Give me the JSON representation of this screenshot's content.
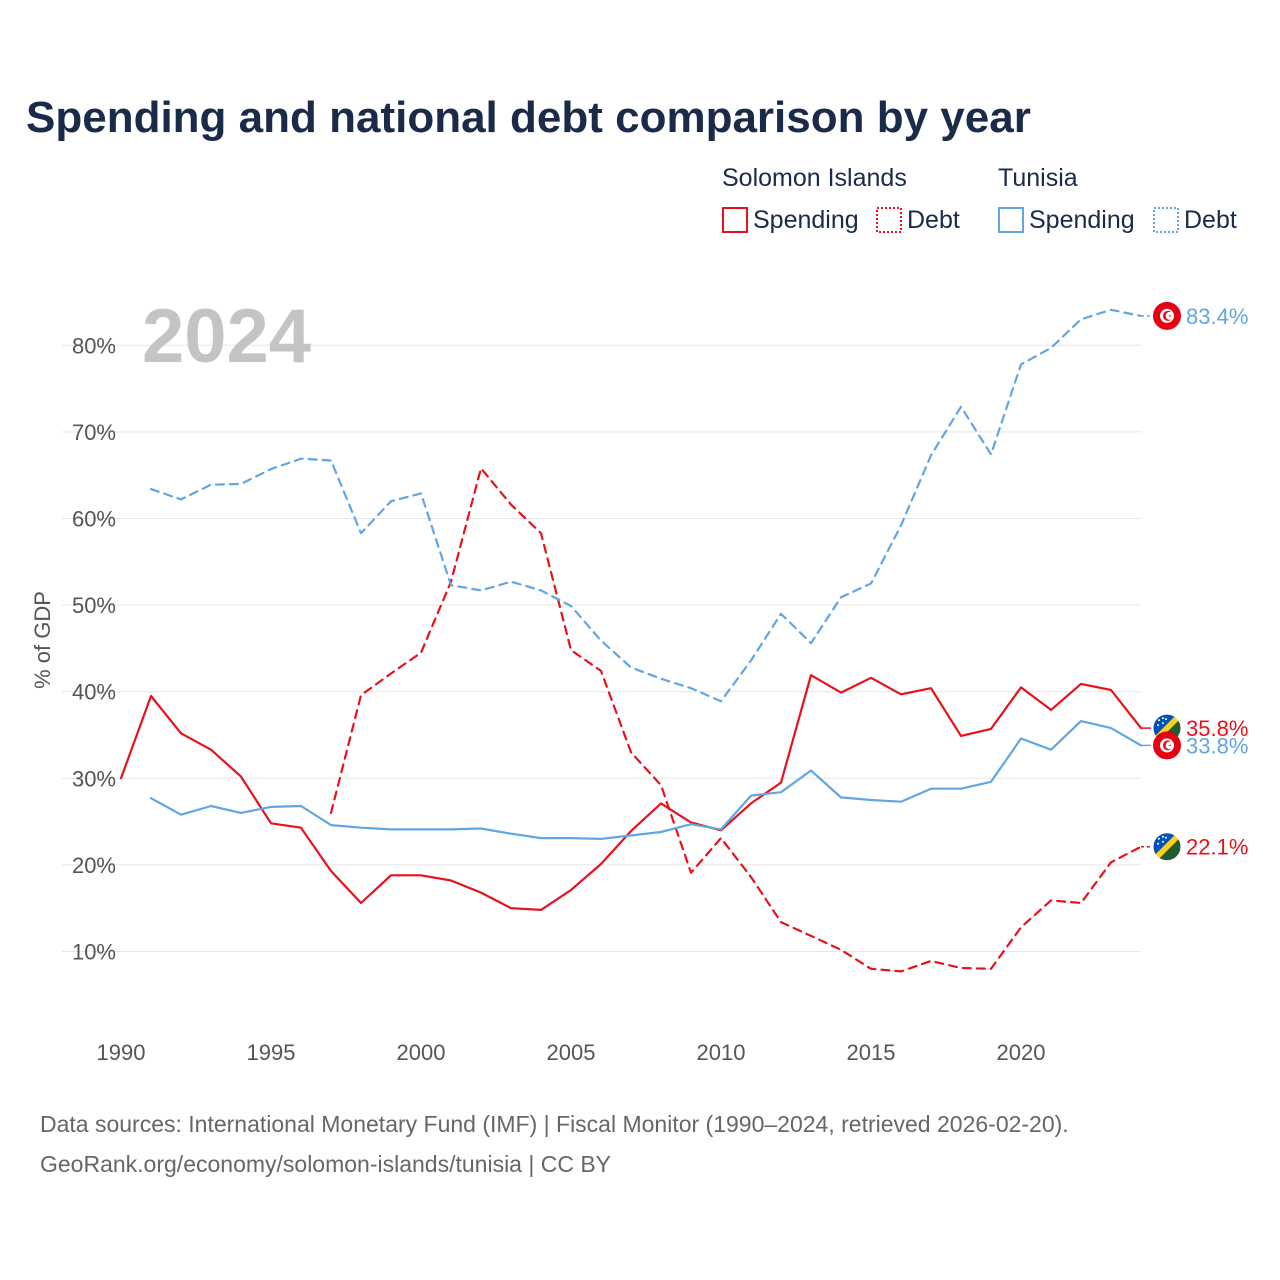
{
  "title": "Spending and national debt comparison by year",
  "year_display": "2024",
  "legend": {
    "groups": [
      {
        "country": "Solomon Islands",
        "items": [
          {
            "label": "Spending",
            "color": "#e8111b",
            "style": "solid"
          },
          {
            "label": "Debt",
            "color": "#e8111b",
            "style": "dashed"
          }
        ]
      },
      {
        "country": "Tunisia",
        "items": [
          {
            "label": "Spending",
            "color": "#62a5e3",
            "style": "solid"
          },
          {
            "label": "Debt",
            "color": "#62a5e3",
            "style": "dashed"
          }
        ]
      }
    ]
  },
  "colors": {
    "solomon": "#e8111b",
    "tunisia": "#62a5e3",
    "title": "#1a2b4a"
  },
  "source_lines": [
    "Data sources: International Monetary Fund (IMF) | Fiscal Monitor (1990–2024, retrieved 2026-02-20).",
    "GeoRank.org/economy/solomon-islands/tunisia | CC BY"
  ],
  "chart_data": {
    "type": "line",
    "ylabel": "% of GDP",
    "xlabel": "",
    "xlim": [
      1990,
      2024
    ],
    "ylim": [
      2,
      86
    ],
    "x_ticks": [
      1990,
      1995,
      2000,
      2005,
      2010,
      2015,
      2020
    ],
    "y_ticks": [
      10,
      20,
      30,
      40,
      50,
      60,
      70,
      80
    ],
    "y_tick_labels": [
      "10%",
      "20%",
      "30%",
      "40%",
      "50%",
      "60%",
      "70%",
      "80%"
    ],
    "series": [
      {
        "name": "Solomon Islands Spending",
        "country": "Solomon Islands",
        "color": "#e8111b",
        "style": "solid",
        "x": [
          1990,
          1991,
          1992,
          1993,
          1994,
          1995,
          1996,
          1997,
          1998,
          1999,
          2000,
          2001,
          2002,
          2003,
          2004,
          2005,
          2006,
          2007,
          2008,
          2009,
          2010,
          2011,
          2012,
          2013,
          2014,
          2015,
          2016,
          2017,
          2018,
          2019,
          2020,
          2021,
          2022,
          2023,
          2024
        ],
        "values": [
          30.0,
          39.5,
          35.2,
          33.3,
          30.2,
          24.8,
          24.3,
          19.3,
          15.6,
          18.8,
          18.8,
          18.2,
          16.8,
          15.0,
          14.8,
          17.1,
          20.1,
          23.9,
          27.1,
          24.9,
          24.0,
          27.1,
          29.5,
          41.9,
          39.9,
          41.6,
          39.7,
          40.4,
          34.9,
          35.7,
          40.5,
          37.9,
          40.9,
          40.2,
          35.8
        ],
        "end_label": "35.8%",
        "end_icon": "solomon-islands-flag-icon"
      },
      {
        "name": "Solomon Islands Debt",
        "country": "Solomon Islands",
        "color": "#e8111b",
        "style": "dashed",
        "x": [
          1997,
          1998,
          1999,
          2000,
          2001,
          2002,
          2003,
          2004,
          2005,
          2006,
          2007,
          2008,
          2009,
          2010,
          2011,
          2012,
          2013,
          2014,
          2015,
          2016,
          2017,
          2018,
          2019,
          2020,
          2021,
          2022,
          2023,
          2024
        ],
        "values": [
          26.0,
          39.6,
          42.1,
          44.5,
          52.7,
          65.8,
          61.6,
          58.3,
          44.8,
          42.4,
          33.0,
          29.2,
          19.1,
          23.1,
          18.6,
          13.4,
          11.8,
          10.2,
          8.0,
          7.7,
          8.9,
          8.1,
          8.0,
          12.8,
          15.9,
          15.6,
          20.3,
          22.1
        ],
        "end_label": "22.1%",
        "end_icon": "solomon-islands-flag-icon"
      },
      {
        "name": "Tunisia Spending",
        "country": "Tunisia",
        "color": "#62a5e3",
        "style": "solid",
        "x": [
          1991,
          1992,
          1993,
          1994,
          1995,
          1996,
          1997,
          1998,
          1999,
          2000,
          2001,
          2002,
          2003,
          2004,
          2005,
          2006,
          2007,
          2008,
          2009,
          2010,
          2011,
          2012,
          2013,
          2014,
          2015,
          2016,
          2017,
          2018,
          2019,
          2020,
          2021,
          2022,
          2023,
          2024
        ],
        "values": [
          27.7,
          25.8,
          26.8,
          26.0,
          26.7,
          26.8,
          24.6,
          24.3,
          24.1,
          24.1,
          24.1,
          24.2,
          23.6,
          23.1,
          23.1,
          23.0,
          23.4,
          23.8,
          24.7,
          24.1,
          28.0,
          28.4,
          30.9,
          27.8,
          27.5,
          27.3,
          28.8,
          28.8,
          29.6,
          34.6,
          33.3,
          36.6,
          35.8,
          33.8
        ],
        "end_label": "33.8%",
        "end_icon": "tunisia-flag-icon"
      },
      {
        "name": "Tunisia Debt",
        "country": "Tunisia",
        "color": "#62a5e3",
        "style": "dashed",
        "x": [
          1991,
          1992,
          1993,
          1994,
          1995,
          1996,
          1997,
          1998,
          1999,
          2000,
          2001,
          2002,
          2003,
          2004,
          2005,
          2006,
          2007,
          2008,
          2009,
          2010,
          2011,
          2012,
          2013,
          2014,
          2015,
          2016,
          2017,
          2018,
          2019,
          2020,
          2021,
          2022,
          2023,
          2024
        ],
        "values": [
          63.4,
          62.2,
          63.9,
          64.0,
          65.7,
          66.9,
          66.7,
          58.3,
          62.0,
          62.9,
          52.3,
          51.7,
          52.7,
          51.7,
          49.9,
          45.9,
          42.8,
          41.5,
          40.4,
          38.9,
          43.6,
          49.0,
          45.6,
          50.9,
          52.5,
          59.2,
          67.3,
          72.9,
          67.4,
          77.8,
          79.7,
          83.0,
          84.1,
          83.4
        ],
        "end_label": "83.4%",
        "end_icon": "tunisia-flag-icon"
      }
    ]
  }
}
